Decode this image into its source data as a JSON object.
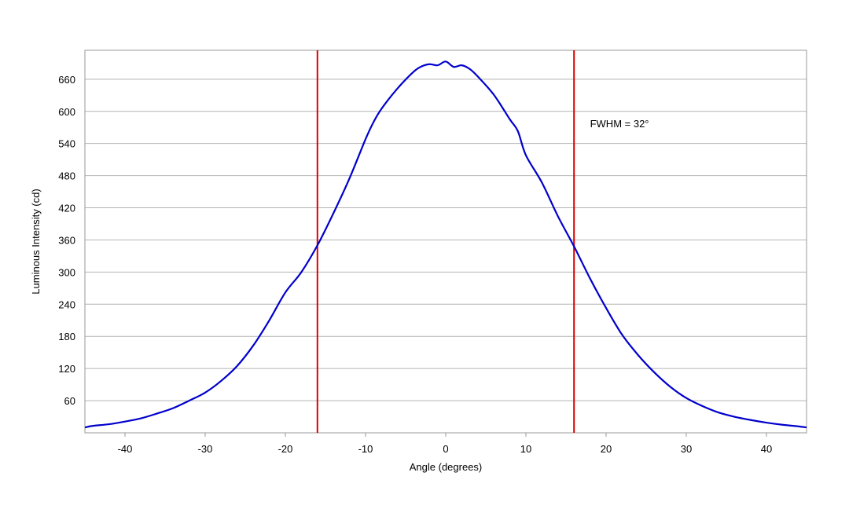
{
  "chart_data": {
    "type": "line",
    "title": "",
    "xlabel": "Angle (degrees)",
    "ylabel": "Luminous Intensity (cd)",
    "xlim": [
      -45,
      45
    ],
    "ylim": [
      0,
      714
    ],
    "x_ticks": [
      -40,
      -30,
      -20,
      -10,
      0,
      10,
      20,
      30,
      40
    ],
    "y_ticks": [
      60,
      120,
      180,
      240,
      300,
      360,
      420,
      480,
      540,
      600,
      660
    ],
    "grid": "horizontal",
    "legend": "none",
    "colors": {
      "series": "#0000cc",
      "markers": "#dd0000",
      "grid": "#b4b4b4",
      "frame": "#999999"
    },
    "series": [
      {
        "x": [
          -45,
          -44,
          -42,
          -40,
          -38,
          -36,
          -34,
          -32,
          -30,
          -28,
          -26,
          -24,
          -22,
          -20,
          -18,
          -16,
          -14,
          -12,
          -10,
          -9,
          -8,
          -6,
          -4,
          -3,
          -2,
          -1,
          0,
          1,
          2,
          3,
          4,
          6,
          8,
          9,
          10,
          12,
          14,
          16,
          18,
          20,
          22,
          24,
          26,
          28,
          30,
          32,
          34,
          36,
          38,
          40,
          42,
          44,
          45
        ],
        "values": [
          10,
          13,
          16,
          21,
          27,
          36,
          46,
          60,
          75,
          97,
          125,
          163,
          210,
          262,
          300,
          350,
          410,
          475,
          548,
          580,
          605,
          643,
          674,
          684,
          688,
          686,
          693,
          683,
          686,
          679,
          665,
          631,
          585,
          563,
          518,
          467,
          404,
          348,
          288,
          233,
          183,
          145,
          113,
          86,
          65,
          50,
          38,
          30,
          24,
          19,
          15,
          12,
          10
        ]
      }
    ],
    "markers": [
      {
        "x": -16,
        "label": ""
      },
      {
        "x": 16,
        "label": ""
      }
    ],
    "annotations": [
      {
        "text": "FWHM = 32°",
        "x": 18,
        "y": 570
      }
    ]
  }
}
